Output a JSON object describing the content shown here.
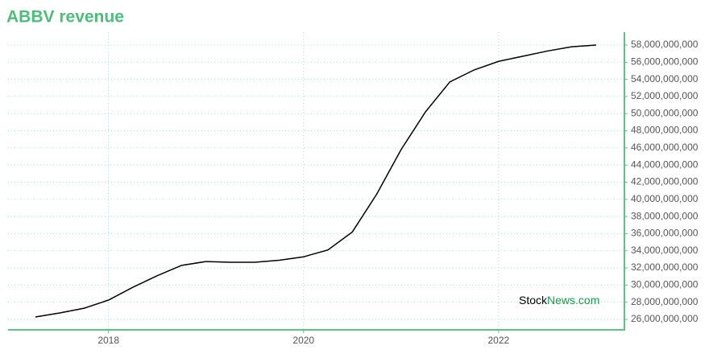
{
  "chart_data": {
    "type": "line",
    "title": "ABBV revenue",
    "x": [
      2017.25,
      2017.5,
      2017.75,
      2018.0,
      2018.25,
      2018.5,
      2018.75,
      2019.0,
      2019.25,
      2019.5,
      2019.75,
      2020.0,
      2020.25,
      2020.5,
      2020.75,
      2021.0,
      2021.25,
      2021.5,
      2021.75,
      2022.0,
      2022.25,
      2022.5,
      2022.75,
      2023.0
    ],
    "series": [
      {
        "name": "Revenue",
        "color": "#000000",
        "values": [
          26280000000,
          26750000000,
          27300000000,
          28250000000,
          29750000000,
          31100000000,
          32300000000,
          32750000000,
          32660000000,
          32660000000,
          32900000000,
          33300000000,
          34100000000,
          36200000000,
          40600000000,
          45800000000,
          50200000000,
          53700000000,
          55100000000,
          56100000000,
          56700000000,
          57300000000,
          57800000000,
          58000000000
        ]
      }
    ],
    "xlim": [
      2016.97,
      2023.29
    ],
    "xticks": [
      2018,
      2020,
      2022
    ],
    "ylim": [
      24780000000,
      59500000000
    ],
    "yticks": [
      {
        "value": 26000000000,
        "label": "26,000,000,000"
      },
      {
        "value": 28000000000,
        "label": "28,000,000,000"
      },
      {
        "value": 30000000000,
        "label": "30,000,000,000"
      },
      {
        "value": 32000000000,
        "label": "32,000,000,000"
      },
      {
        "value": 34000000000,
        "label": "34,000,000,000"
      },
      {
        "value": 36000000000,
        "label": "36,000,000,000"
      },
      {
        "value": 38000000000,
        "label": "38,000,000,000"
      },
      {
        "value": 40000000000,
        "label": "40,000,000,000"
      },
      {
        "value": 42000000000,
        "label": "42,000,000,000"
      },
      {
        "value": 44000000000,
        "label": "44,000,000,000"
      },
      {
        "value": 46000000000,
        "label": "46,000,000,000"
      },
      {
        "value": 48000000000,
        "label": "48,000,000,000"
      },
      {
        "value": 50000000000,
        "label": "50,000,000,000"
      },
      {
        "value": 52000000000,
        "label": "52,000,000,000"
      },
      {
        "value": 54000000000,
        "label": "54,000,000,000"
      },
      {
        "value": 56000000000,
        "label": "56,000,000,000"
      },
      {
        "value": 58000000000,
        "label": "58,000,000,000"
      }
    ],
    "grid": true,
    "watermark": [
      "Stock",
      "News.com"
    ]
  }
}
